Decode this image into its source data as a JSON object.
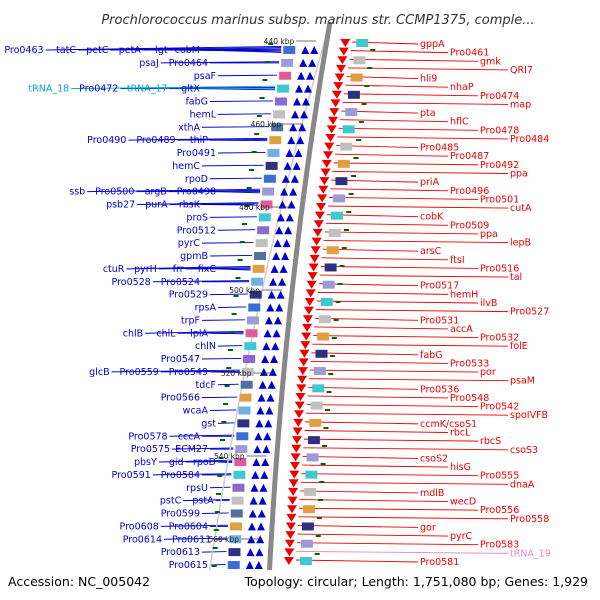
{
  "title": "Prochlorococcus marinus subsp. marinus str. CCMP1375, comple...",
  "footer": {
    "accession": "Accession: NC_005042",
    "info": "Topology: circular; Length: 1,751,080 bp; Genes: 1,929"
  },
  "colors": {
    "forward": "#0000cc",
    "reverse": "#ee0000",
    "trna_forward": "#00aacc",
    "trna_reverse": "#ee88bb",
    "backbone": "#888888",
    "tick": "#006600"
  },
  "ticks": [
    "440 kbp",
    "460 kbp",
    "480 kbp",
    "500 kbp",
    "520 kbp",
    "540 kbp",
    "560 kbp"
  ],
  "forward_genes": [
    [
      "Pro0463",
      "tatC",
      "petC",
      "petA",
      "lgt",
      "cobM"
    ],
    [
      "psaJ",
      "Pro0464"
    ],
    [
      "psaF"
    ],
    [
      "tRNA_18",
      "Pro0472",
      "tRNA_17",
      "gltX"
    ],
    [
      "fabG"
    ],
    [
      "hemL"
    ],
    [
      "xthA"
    ],
    [
      "Pro0490",
      "Pro0489",
      "thiP"
    ],
    [
      "Pro0491"
    ],
    [
      "hemC"
    ],
    [
      "rpoD"
    ],
    [
      "ssb",
      "Pro0500",
      "argB",
      "Pro0498"
    ],
    [
      "psb27",
      "purA",
      "rbsK"
    ],
    [
      "proS"
    ],
    [
      "Pro0512"
    ],
    [
      "pyrC"
    ],
    [
      "gpmB"
    ],
    [
      "ctuR",
      "pyrH",
      "frr",
      "fixC"
    ],
    [
      "Pro0528",
      "Pro0524"
    ],
    [
      "Pro0529"
    ],
    [
      "rpsA"
    ],
    [
      "trpF"
    ],
    [
      "chlB",
      "chlL",
      "lplA"
    ],
    [
      "chlN"
    ],
    [
      "Pro0547"
    ],
    [
      "glcB",
      "Pro0559",
      "Pro0549"
    ],
    [
      "tdcF"
    ],
    [
      "Pro0566"
    ],
    [
      "wcaA"
    ],
    [
      "gst"
    ],
    [
      "Pro0578",
      "cccA"
    ],
    [
      "Pro0575",
      "ECM27"
    ],
    [
      "pbsY",
      "gid",
      "rpoD"
    ],
    [
      "Pro0591",
      "Pro0584"
    ],
    [
      "rpsU"
    ],
    [
      "pstC",
      "pstA"
    ],
    [
      "Pro0599"
    ],
    [
      "Pro0608",
      "Pro0604"
    ],
    [
      "Pro0614",
      "Pro0611"
    ],
    [
      "Pro0613"
    ],
    [
      "Pro0615"
    ]
  ],
  "reverse_genes": [
    "gppA",
    "Pro0461",
    "gmk",
    "QRI7",
    "hli9",
    "nhaP",
    "Pro0474",
    "map",
    "pta",
    "hflC",
    "Pro0478",
    "Pro0484",
    "Pro0485",
    "Pro0487",
    "Pro0492",
    "ppa",
    "priA",
    "Pro0496",
    "Pro0501",
    "cutA",
    "cobK",
    "Pro0509",
    "ppa",
    "lepB",
    "arsC",
    "ftsI",
    "Pro0516",
    "tal",
    "Pro0517",
    "hemH",
    "ilvB",
    "Pro0527",
    "Pro0531",
    "accA",
    "Pro0532",
    "folE",
    "fabG",
    "Pro0533",
    "por",
    "psaM",
    "Pro0536",
    "Pro0548",
    "Pro0542",
    "spoIVFB",
    "ccmK/csoS1",
    "rbcL",
    "rbcS",
    "csoS3",
    "csoS2",
    "hisG",
    "Pro0555",
    "dnaA",
    "mdlB",
    "wecD",
    "Pro0556",
    "Pro0558",
    "gor",
    "pyrC",
    "Pro0583",
    "tRNA_19",
    "Pro0581"
  ]
}
